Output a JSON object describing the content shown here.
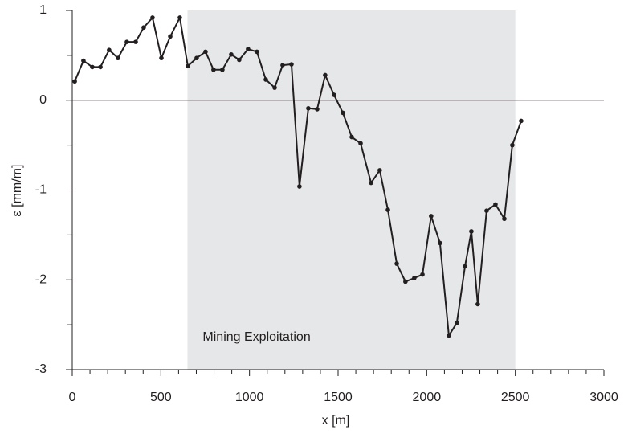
{
  "chart_data": {
    "type": "line",
    "xlabel": "x [m]",
    "ylabel": "ε [mm/m]",
    "xlim": [
      0,
      3000
    ],
    "ylim": [
      -3,
      1
    ],
    "xticks": [
      0,
      500,
      1000,
      1500,
      2000,
      2500,
      3000
    ],
    "yticks": [
      -3,
      -2,
      -1,
      0,
      1
    ],
    "xminorticks": [
      100,
      200,
      300,
      400,
      600,
      700,
      800,
      900,
      1100,
      1200,
      1300,
      1400,
      1600,
      1700,
      1800,
      1900,
      2100,
      2200,
      2300,
      2400,
      2600,
      2700,
      2800,
      2900
    ],
    "yminorticks": [
      -2.5,
      -1.5,
      -0.5,
      0.5
    ],
    "hline": 0,
    "annotations": [
      {
        "text": "Mining Exploitation",
        "x_range": [
          650,
          2500
        ],
        "color": "#e6e7e8"
      }
    ],
    "series": [
      {
        "color": "#231f20",
        "x": [
          14,
          63,
          113,
          159,
          208,
          258,
          308,
          358,
          403,
          453,
          503,
          553,
          607,
          652,
          702,
          752,
          797,
          847,
          897,
          942,
          992,
          1042,
          1092,
          1142,
          1187,
          1237,
          1282,
          1332,
          1382,
          1427,
          1477,
          1527,
          1577,
          1627,
          1686,
          1735,
          1781,
          1831,
          1880,
          1930,
          1976,
          2025,
          2075,
          2125,
          2170,
          2216,
          2252,
          2288,
          2338,
          2388,
          2438,
          2483,
          2533
        ],
        "values": [
          0.21,
          0.44,
          0.37,
          0.37,
          0.56,
          0.47,
          0.65,
          0.65,
          0.81,
          0.92,
          0.47,
          0.71,
          0.92,
          0.38,
          0.47,
          0.54,
          0.34,
          0.34,
          0.51,
          0.45,
          0.57,
          0.54,
          0.23,
          0.14,
          0.39,
          0.4,
          -0.96,
          -0.09,
          -0.1,
          0.28,
          0.06,
          -0.14,
          -0.41,
          -0.48,
          -0.92,
          -0.78,
          -1.22,
          -1.82,
          -2.02,
          -1.98,
          -1.94,
          -1.29,
          -1.59,
          -2.62,
          -2.48,
          -1.85,
          -1.46,
          -2.27,
          -1.23,
          -1.16,
          -1.32,
          -0.5,
          -0.23
        ]
      }
    ]
  }
}
